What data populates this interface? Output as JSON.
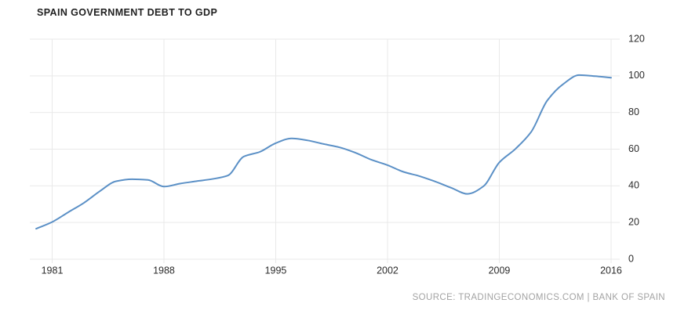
{
  "chart_data": {
    "type": "line",
    "title": "SPAIN GOVERNMENT DEBT TO GDP",
    "xlabel": "",
    "ylabel": "",
    "legend_position": "none",
    "grid": true,
    "xlim": [
      1979.6,
      2016
    ],
    "ylim": [
      0,
      120
    ],
    "x_ticks": [
      1981,
      1988,
      1995,
      2002,
      2009,
      2016
    ],
    "y_ticks": [
      0,
      20,
      40,
      60,
      80,
      100,
      120
    ],
    "x": [
      1980,
      1981,
      1982,
      1983,
      1984,
      1985,
      1986,
      1987,
      1988,
      1989,
      1990,
      1991,
      1992,
      1993,
      1994,
      1995,
      1996,
      1997,
      1998,
      1999,
      2000,
      2001,
      2002,
      2003,
      2004,
      2005,
      2006,
      2007,
      2008,
      2009,
      2010,
      2011,
      2012,
      2013,
      2014,
      2015,
      2016
    ],
    "series": [
      {
        "name": "Spain Government Debt to GDP (percent of GDP)",
        "values": [
          16.6,
          20.3,
          25.6,
          30.8,
          37.2,
          42.5,
          43.6,
          43.2,
          39.6,
          41.2,
          42.5,
          43.7,
          45.6,
          56.0,
          58.5,
          63.3,
          65.9,
          64.8,
          62.8,
          61.0,
          58.0,
          54.2,
          51.3,
          47.6,
          45.3,
          42.3,
          38.9,
          35.6,
          39.7,
          52.8,
          60.1,
          69.5,
          86.5,
          95.5,
          100.4,
          99.8,
          99.0
        ]
      }
    ],
    "colors": {
      "line": "#5b90c6",
      "grid": "#e9e9e9",
      "tick_text": "#2b2b2b",
      "background": "#ffffff"
    }
  },
  "source": {
    "text": "SOURCE: TRADINGECONOMICS.COM | BANK OF SPAIN"
  }
}
